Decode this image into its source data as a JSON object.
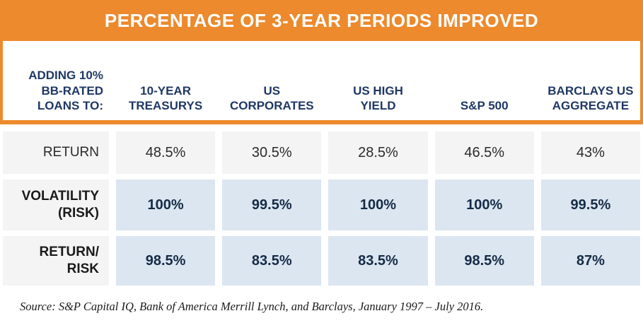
{
  "title": "PERCENTAGE OF 3-YEAR PERIODS IMPROVED",
  "table": {
    "corner_label": "ADDING 10%\nBB-RATED\nLOANS TO:",
    "column_headers": [
      "10-YEAR\nTREASURYS",
      "US\nCORPORATES",
      "US HIGH\nYIELD",
      "S&P 500",
      "BARCLAYS US\nAGGREGATE"
    ],
    "rows": [
      {
        "label": "RETURN",
        "cells": [
          "48.5%",
          "30.5%",
          "28.5%",
          "46.5%",
          "43%"
        ]
      },
      {
        "label": "VOLATILITY\n(RISK)",
        "cells": [
          "100%",
          "99.5%",
          "100%",
          "100%",
          "99.5%"
        ]
      },
      {
        "label": "RETURN/\nRISK",
        "cells": [
          "98.5%",
          "83.5%",
          "83.5%",
          "98.5%",
          "87%"
        ]
      }
    ]
  },
  "source_note": "Source: S&P Capital IQ, Bank of America Merrill Lynch, and Barclays, January 1997 – July 2016.",
  "colors": {
    "orange": "#EC8A2D",
    "navy": "#1F3864",
    "cell_gray": "#F4F4F5",
    "cell_blue": "#DCE6F1",
    "text_dark": "#2B2B2B",
    "value_navy": "#152B46"
  },
  "chart_data": {
    "type": "table",
    "title": "PERCENTAGE OF 3-YEAR PERIODS IMPROVED",
    "row_header": "ADDING 10% BB-RATED LOANS TO:",
    "categories": [
      "10-YEAR TREASURYS",
      "US CORPORATES",
      "US HIGH YIELD",
      "S&P 500",
      "BARCLAYS US AGGREGATE"
    ],
    "unit": "%",
    "series": [
      {
        "name": "RETURN",
        "values": [
          48.5,
          30.5,
          28.5,
          46.5,
          43
        ]
      },
      {
        "name": "VOLATILITY (RISK)",
        "values": [
          100,
          99.5,
          100,
          100,
          99.5
        ]
      },
      {
        "name": "RETURN/ RISK",
        "values": [
          98.5,
          83.5,
          83.5,
          98.5,
          87
        ]
      }
    ],
    "source": "Source: S&P Capital IQ, Bank of America Merrill Lynch, and Barclays, January 1997 – July 2016."
  }
}
